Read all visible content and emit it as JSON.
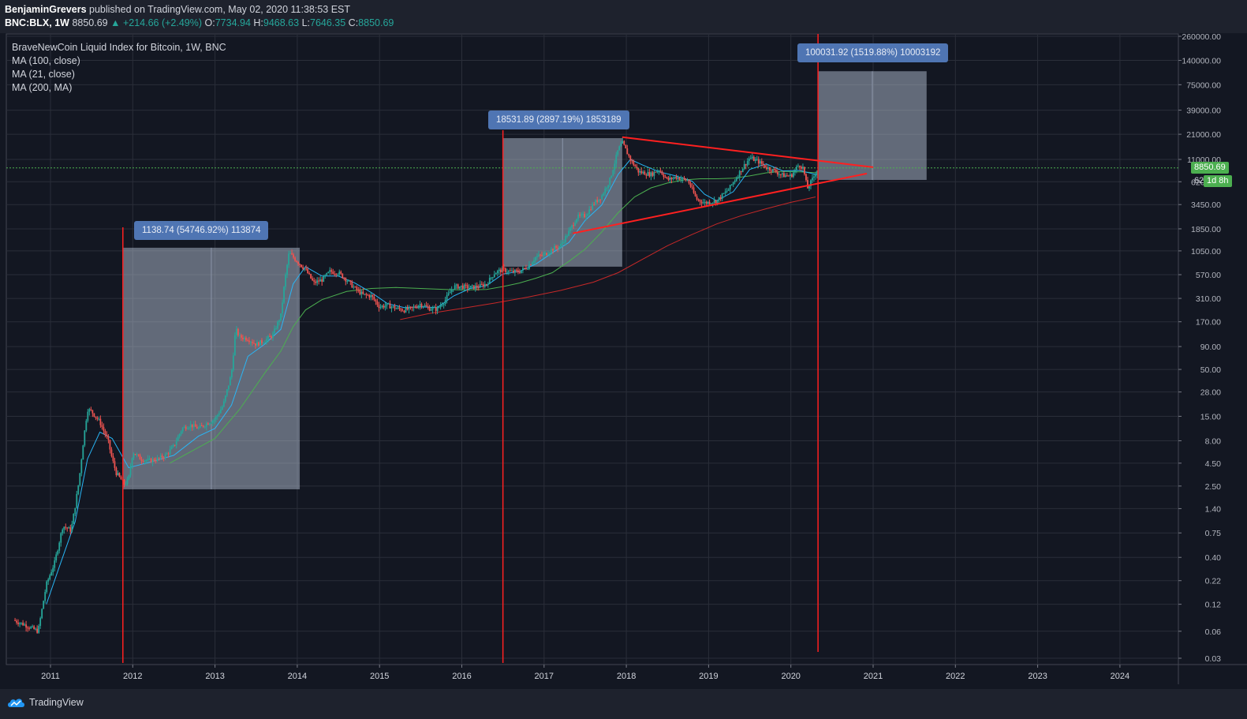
{
  "header": {
    "author": "BenjaminGrevers",
    "published_text": "published on TradingView.com, May 02, 2020 11:38:53 EST",
    "symbol": "BNC:BLX, 1W",
    "last": "8850.69",
    "change": "▲ +214.66 (+2.49%)",
    "o_label": "O:",
    "o": "7734.94",
    "h_label": "H:",
    "h": "9468.63",
    "l_label": "L:",
    "l": "7646.35",
    "c_label": "C:",
    "c": "8850.69"
  },
  "legend": {
    "title": "BraveNewCoin Liquid Index for Bitcoin, 1W, BNC",
    "studies": [
      "MA (100, close)",
      "MA (21, close)",
      "MA (200, MA)"
    ]
  },
  "price_tag": {
    "value": "8850.69",
    "countdown": "1d 8h",
    "countdown_prefix": "62"
  },
  "footer": {
    "brand": "TradingView"
  },
  "measurements": [
    {
      "label": "1138.74 (54746.92%) 113874"
    },
    {
      "label": "18531.89 (2897.19%) 1853189"
    },
    {
      "label": "100031.92 (1519.88%) 10003192"
    }
  ],
  "colors": {
    "background": "#131722",
    "bull": "#26a69a",
    "bear": "#ef5350",
    "ma100": "#4caf50",
    "ma21": "#29b6f6",
    "ma200": "#c62828",
    "annotation": "#ff2020",
    "box": "#b2bdd0",
    "price_line": "#4caf50"
  },
  "chart_data": {
    "type": "candlestick",
    "y_scale": "log",
    "y_ticks": [
      "260000.00",
      "140000.00",
      "75000.00",
      "39000.00",
      "21000.00",
      "11000.00",
      "6200.00",
      "3450.00",
      "1850.00",
      "1050.00",
      "570.00",
      "310.00",
      "170.00",
      "90.00",
      "50.00",
      "28.00",
      "15.00",
      "8.00",
      "4.50",
      "2.50",
      "1.40",
      "0.75",
      "0.40",
      "0.22",
      "0.12",
      "0.06",
      "0.03"
    ],
    "y_tick_values": [
      260000,
      140000,
      75000,
      39000,
      21000,
      11000,
      6200,
      3450,
      1850,
      1050,
      570,
      310,
      170,
      90,
      50,
      28,
      15,
      8,
      4.5,
      2.5,
      1.4,
      0.75,
      0.4,
      0.22,
      0.12,
      0.06,
      0.03
    ],
    "x_ticks": [
      "2011",
      "2012",
      "2013",
      "2014",
      "2015",
      "2016",
      "2017",
      "2018",
      "2019",
      "2020",
      "2021",
      "2022",
      "2023",
      "2024"
    ],
    "x_tick_years": [
      2011,
      2012,
      2013,
      2014,
      2015,
      2016,
      2017,
      2018,
      2019,
      2020,
      2021,
      2022,
      2023,
      2024
    ],
    "price_path": [
      [
        2010.55,
        0.08
      ],
      [
        2010.7,
        0.07
      ],
      [
        2010.85,
        0.06
      ],
      [
        2010.95,
        0.2
      ],
      [
        2011.05,
        0.35
      ],
      [
        2011.15,
        0.9
      ],
      [
        2011.25,
        0.8
      ],
      [
        2011.3,
        1.5
      ],
      [
        2011.35,
        3
      ],
      [
        2011.4,
        8
      ],
      [
        2011.45,
        18
      ],
      [
        2011.5,
        17
      ],
      [
        2011.6,
        13
      ],
      [
        2011.7,
        8
      ],
      [
        2011.75,
        5
      ],
      [
        2011.8,
        3.5
      ],
      [
        2011.9,
        2.6
      ],
      [
        2011.95,
        3
      ],
      [
        2012.0,
        6
      ],
      [
        2012.1,
        5
      ],
      [
        2012.2,
        4.8
      ],
      [
        2012.3,
        5
      ],
      [
        2012.4,
        5.5
      ],
      [
        2012.5,
        7
      ],
      [
        2012.6,
        11
      ],
      [
        2012.7,
        12
      ],
      [
        2012.8,
        11
      ],
      [
        2012.9,
        12.5
      ],
      [
        2013.0,
        14
      ],
      [
        2013.1,
        20
      ],
      [
        2013.2,
        45
      ],
      [
        2013.25,
        140
      ],
      [
        2013.3,
        115
      ],
      [
        2013.4,
        110
      ],
      [
        2013.5,
        95
      ],
      [
        2013.6,
        105
      ],
      [
        2013.7,
        120
      ],
      [
        2013.8,
        200
      ],
      [
        2013.85,
        500
      ],
      [
        2013.9,
        1000
      ],
      [
        2014.0,
        800
      ],
      [
        2014.1,
        650
      ],
      [
        2014.2,
        460
      ],
      [
        2014.3,
        500
      ],
      [
        2014.4,
        620
      ],
      [
        2014.5,
        600
      ],
      [
        2014.6,
        500
      ],
      [
        2014.7,
        400
      ],
      [
        2014.8,
        340
      ],
      [
        2014.9,
        330
      ],
      [
        2015.0,
        250
      ],
      [
        2015.1,
        260
      ],
      [
        2015.2,
        240
      ],
      [
        2015.3,
        230
      ],
      [
        2015.4,
        240
      ],
      [
        2015.5,
        270
      ],
      [
        2015.6,
        240
      ],
      [
        2015.7,
        235
      ],
      [
        2015.8,
        300
      ],
      [
        2015.9,
        420
      ],
      [
        2016.0,
        420
      ],
      [
        2016.1,
        410
      ],
      [
        2016.2,
        420
      ],
      [
        2016.3,
        450
      ],
      [
        2016.4,
        600
      ],
      [
        2016.5,
        650
      ],
      [
        2016.6,
        610
      ],
      [
        2016.7,
        620
      ],
      [
        2016.8,
        700
      ],
      [
        2016.9,
        900
      ],
      [
        2017.0,
        950
      ],
      [
        2017.1,
        1100
      ],
      [
        2017.2,
        1200
      ],
      [
        2017.3,
        1700
      ],
      [
        2017.4,
        2500
      ],
      [
        2017.5,
        2600
      ],
      [
        2017.6,
        3500
      ],
      [
        2017.7,
        4300
      ],
      [
        2017.8,
        6500
      ],
      [
        2017.9,
        14000
      ],
      [
        2017.95,
        17000
      ],
      [
        2018.05,
        11000
      ],
      [
        2018.15,
        8000
      ],
      [
        2018.3,
        7500
      ],
      [
        2018.4,
        8500
      ],
      [
        2018.5,
        6500
      ],
      [
        2018.6,
        7000
      ],
      [
        2018.75,
        6400
      ],
      [
        2018.85,
        4000
      ],
      [
        2018.95,
        3600
      ],
      [
        2019.1,
        3800
      ],
      [
        2019.25,
        5200
      ],
      [
        2019.4,
        8500
      ],
      [
        2019.5,
        11500
      ],
      [
        2019.6,
        10500
      ],
      [
        2019.7,
        9000
      ],
      [
        2019.8,
        8200
      ],
      [
        2019.9,
        7300
      ],
      [
        2020.0,
        7200
      ],
      [
        2020.1,
        9700
      ],
      [
        2020.15,
        8800
      ],
      [
        2020.2,
        5200
      ],
      [
        2020.27,
        6800
      ],
      [
        2020.33,
        8850
      ]
    ],
    "ma21": [
      [
        2010.95,
        0.12
      ],
      [
        2011.1,
        0.3
      ],
      [
        2011.3,
        1
      ],
      [
        2011.45,
        5
      ],
      [
        2011.6,
        10
      ],
      [
        2011.75,
        8.5
      ],
      [
        2011.95,
        4
      ],
      [
        2012.2,
        4.6
      ],
      [
        2012.5,
        5.5
      ],
      [
        2012.8,
        9
      ],
      [
        2013.0,
        11
      ],
      [
        2013.2,
        20
      ],
      [
        2013.4,
        70
      ],
      [
        2013.6,
        95
      ],
      [
        2013.8,
        140
      ],
      [
        2013.95,
        450
      ],
      [
        2014.1,
        700
      ],
      [
        2014.3,
        550
      ],
      [
        2014.5,
        550
      ],
      [
        2014.7,
        460
      ],
      [
        2014.9,
        360
      ],
      [
        2015.1,
        270
      ],
      [
        2015.3,
        245
      ],
      [
        2015.5,
        250
      ],
      [
        2015.7,
        245
      ],
      [
        2015.9,
        330
      ],
      [
        2016.1,
        400
      ],
      [
        2016.3,
        430
      ],
      [
        2016.5,
        580
      ],
      [
        2016.7,
        620
      ],
      [
        2016.9,
        750
      ],
      [
        2017.1,
        1000
      ],
      [
        2017.3,
        1300
      ],
      [
        2017.5,
        2300
      ],
      [
        2017.7,
        3400
      ],
      [
        2017.9,
        7500
      ],
      [
        2018.05,
        11000
      ],
      [
        2018.2,
        9500
      ],
      [
        2018.4,
        8000
      ],
      [
        2018.6,
        7200
      ],
      [
        2018.8,
        6300
      ],
      [
        2018.95,
        4500
      ],
      [
        2019.1,
        3800
      ],
      [
        2019.3,
        4800
      ],
      [
        2019.5,
        8500
      ],
      [
        2019.7,
        9800
      ],
      [
        2019.9,
        8200
      ],
      [
        2020.1,
        8300
      ],
      [
        2020.33,
        7400
      ]
    ],
    "ma100": [
      [
        2012.45,
        4.5
      ],
      [
        2012.7,
        6
      ],
      [
        2013.0,
        8.5
      ],
      [
        2013.3,
        18
      ],
      [
        2013.6,
        45
      ],
      [
        2013.8,
        80
      ],
      [
        2013.95,
        150
      ],
      [
        2014.1,
        230
      ],
      [
        2014.3,
        300
      ],
      [
        2014.6,
        370
      ],
      [
        2014.9,
        400
      ],
      [
        2015.2,
        410
      ],
      [
        2015.5,
        400
      ],
      [
        2015.8,
        390
      ],
      [
        2016.0,
        385
      ],
      [
        2016.3,
        390
      ],
      [
        2016.5,
        420
      ],
      [
        2016.7,
        460
      ],
      [
        2016.9,
        520
      ],
      [
        2017.1,
        600
      ],
      [
        2017.3,
        800
      ],
      [
        2017.5,
        1100
      ],
      [
        2017.7,
        1700
      ],
      [
        2017.9,
        2800
      ],
      [
        2018.1,
        4200
      ],
      [
        2018.3,
        5300
      ],
      [
        2018.5,
        6000
      ],
      [
        2018.7,
        6500
      ],
      [
        2018.9,
        6700
      ],
      [
        2019.1,
        6700
      ],
      [
        2019.3,
        6800
      ],
      [
        2019.5,
        7200
      ],
      [
        2019.7,
        7800
      ],
      [
        2019.9,
        8100
      ],
      [
        2020.1,
        8000
      ],
      [
        2020.33,
        7800
      ]
    ],
    "ma200": [
      [
        2015.25,
        180
      ],
      [
        2015.6,
        210
      ],
      [
        2016.0,
        240
      ],
      [
        2016.4,
        275
      ],
      [
        2016.8,
        320
      ],
      [
        2017.2,
        380
      ],
      [
        2017.6,
        470
      ],
      [
        2017.9,
        600
      ],
      [
        2018.2,
        850
      ],
      [
        2018.5,
        1200
      ],
      [
        2018.8,
        1600
      ],
      [
        2019.1,
        2100
      ],
      [
        2019.4,
        2600
      ],
      [
        2019.7,
        3100
      ],
      [
        2020.0,
        3650
      ],
      [
        2020.3,
        4200
      ]
    ],
    "price_line": 8850.69
  }
}
